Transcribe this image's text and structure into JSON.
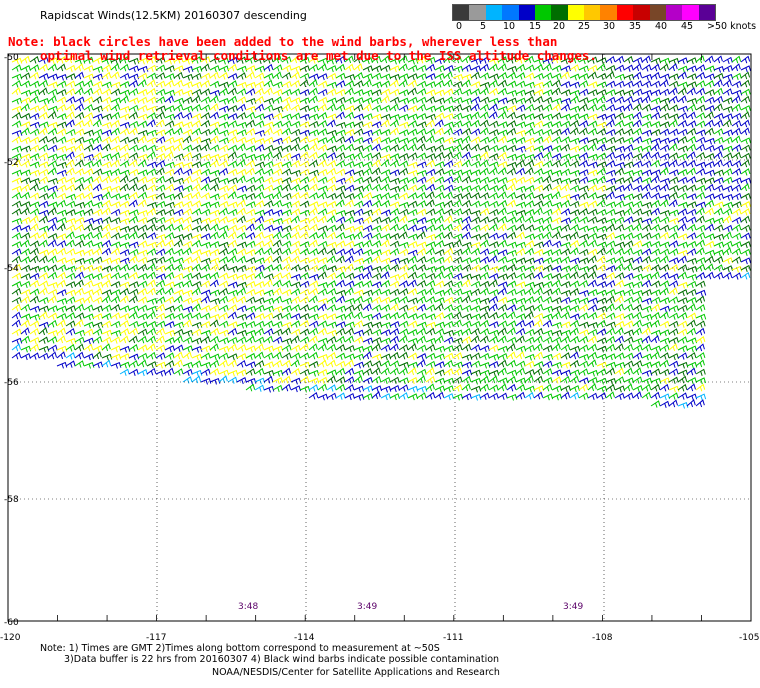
{
  "header": {
    "title": "Rapidscat Winds(12.5KM) 20160307 descending",
    "note_line1": "Note: black circles have been added to the wind barbs, wherever less than",
    "note_line2": "optimal wind retrieval conditions are met due to the ISS altitude changes."
  },
  "legend": {
    "colors": [
      "#3a3a3a",
      "#9a9a9a",
      "#00b4ff",
      "#0078ff",
      "#0000c8",
      "#00c800",
      "#006e00",
      "#ffff00",
      "#ffc800",
      "#ff8200",
      "#ff0000",
      "#c80000",
      "#784628",
      "#b400c8",
      "#ff00ff",
      "#5a0096"
    ],
    "labels": [
      "0",
      "5",
      "10",
      "15",
      "20",
      "25",
      "30",
      "35",
      "40",
      "45",
      ">50 knots"
    ]
  },
  "map": {
    "lat_labels": [
      "-50",
      "-52",
      "-54",
      "-56",
      "-58",
      "-60"
    ],
    "lon_labels": [
      "-120",
      "-117",
      "-114",
      "-111",
      "-108",
      "-105"
    ],
    "time_labels": [
      "3:48",
      "3:49",
      "3:49"
    ]
  },
  "footer": {
    "line1": "Note: 1) Times are GMT 2)Times along bottom correspond to measurement at ~50S",
    "line2": "3)Data buffer is 22 hrs from 20160307 4) Black wind barbs indicate possible contamination",
    "line3": "NOAA/NESDIS/Center for Satellite Applications and Research"
  }
}
